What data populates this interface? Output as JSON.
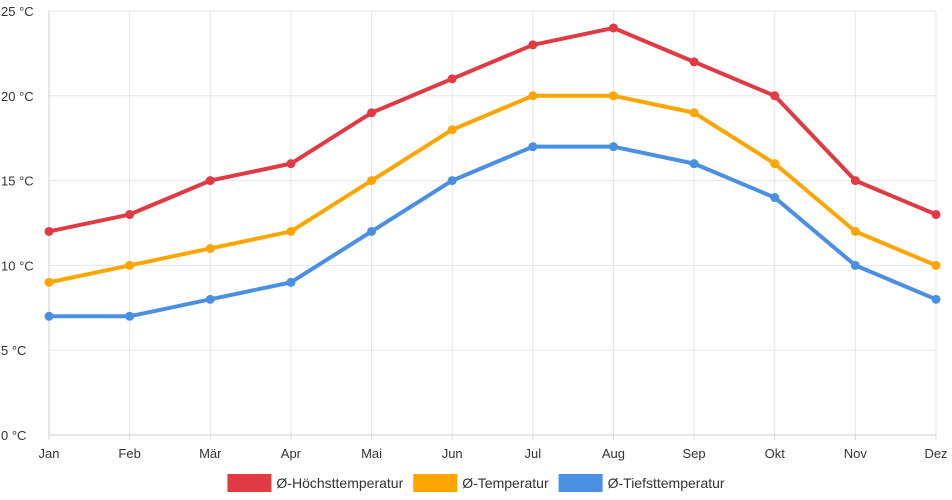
{
  "chart_data": {
    "type": "line",
    "title": "",
    "xlabel": "",
    "ylabel": "",
    "categories": [
      "Jan",
      "Feb",
      "Mär",
      "Apr",
      "Mai",
      "Jun",
      "Jul",
      "Aug",
      "Sep",
      "Okt",
      "Nov",
      "Dez"
    ],
    "ylim": [
      0,
      25
    ],
    "yticks": [
      0,
      5,
      10,
      15,
      20,
      25
    ],
    "y_unit": " °C",
    "grid": true,
    "legend_position": "bottom",
    "series": [
      {
        "name": "Ø-Höchsttemperatur",
        "color": "#e03a45",
        "values": [
          12,
          13,
          15,
          16,
          19,
          21,
          23,
          24,
          22,
          20,
          15,
          13
        ]
      },
      {
        "name": "Ø-Temperatur",
        "color": "#ffa500",
        "values": [
          9,
          10,
          11,
          12,
          15,
          18,
          20,
          20,
          19,
          16,
          12,
          10
        ]
      },
      {
        "name": "Ø-Tiefsttemperatur",
        "color": "#4a90e2",
        "values": [
          7,
          7,
          8,
          9,
          12,
          15,
          17,
          17,
          16,
          14,
          10,
          8
        ]
      }
    ]
  }
}
